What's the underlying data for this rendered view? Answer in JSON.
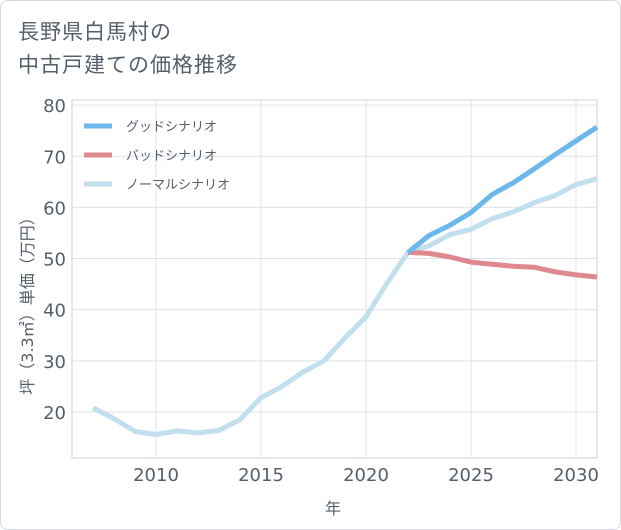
{
  "title_lines": [
    "長野県白馬村の",
    "中古戸建ての価格推移"
  ],
  "chart_data": {
    "type": "line",
    "title": "長野県白馬村の中古戸建ての価格推移",
    "xlabel": "年",
    "ylabel": "坪（3.3㎡）単価（万円）",
    "xlim": [
      2006,
      2031
    ],
    "ylim": [
      11,
      81
    ],
    "xticks": [
      2010,
      2015,
      2020,
      2025,
      2030
    ],
    "yticks": [
      20,
      30,
      40,
      50,
      60,
      70,
      80
    ],
    "grid": true,
    "legend_position": "top-left",
    "series": [
      {
        "name": "グッドシナリオ",
        "color": "#6cb8ec",
        "x": [
          2022,
          2023,
          2024,
          2025,
          2026,
          2027,
          2028,
          2029,
          2030,
          2031
        ],
        "y": [
          51.2,
          54.5,
          56.5,
          59.0,
          62.5,
          64.8,
          67.5,
          70.3,
          73.0,
          75.7
        ]
      },
      {
        "name": "バッドシナリオ",
        "color": "#e0888f",
        "x": [
          2022,
          2023,
          2024,
          2025,
          2026,
          2027,
          2028,
          2029,
          2030,
          2031
        ],
        "y": [
          51.2,
          51.0,
          50.3,
          49.3,
          48.9,
          48.5,
          48.3,
          47.4,
          46.8,
          46.4
        ]
      },
      {
        "name": "ノーマルシナリオ",
        "color": "#c2dfee",
        "x": [
          2007,
          2008,
          2009,
          2010,
          2011,
          2012,
          2013,
          2014,
          2015,
          2016,
          2017,
          2018,
          2019,
          2020,
          2021,
          2022,
          2023,
          2024,
          2025,
          2026,
          2027,
          2028,
          2029,
          2030,
          2031
        ],
        "y": [
          20.8,
          18.7,
          16.2,
          15.6,
          16.3,
          15.9,
          16.4,
          18.5,
          22.8,
          25.0,
          27.8,
          30.0,
          34.5,
          38.6,
          45.2,
          51.2,
          52.5,
          54.7,
          55.7,
          57.8,
          59.1,
          60.9,
          62.3,
          64.5,
          65.6
        ]
      }
    ]
  }
}
